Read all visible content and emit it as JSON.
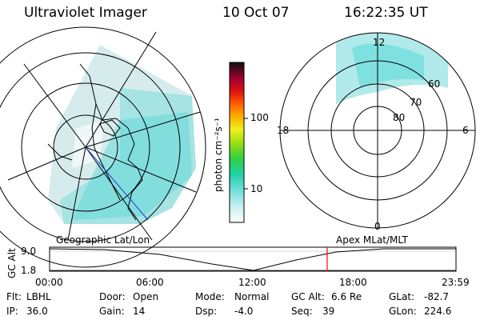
{
  "header": {
    "title": "Ultraviolet Imager",
    "date": "10 Oct 07",
    "time": "16:22:35 UT"
  },
  "colorbar": {
    "unit_label": "photon cm⁻²s⁻¹",
    "ticks": [
      "100",
      "10"
    ]
  },
  "polar_plot": {
    "mlt_labels": {
      "top": "12",
      "left": "18",
      "right": "6",
      "bottom": "0"
    },
    "lat_labels": [
      "60",
      "70",
      "80"
    ]
  },
  "timeline": {
    "left_title": "Geographic Lat/Lon",
    "right_title": "Apex MLat/MLT",
    "y_axis_label": "GC Alt",
    "y_ticks": [
      "9.0",
      "1.8"
    ],
    "x_ticks": [
      "00:00",
      "06:00",
      "12:00",
      "18:00",
      "23:59"
    ],
    "current_time_fraction": 0.683
  },
  "info": {
    "row1": [
      {
        "key": "Flt:",
        "val": "LBHL"
      },
      {
        "key": "Door:",
        "val": "Open"
      },
      {
        "key": "Mode:",
        "val": "Normal"
      },
      {
        "key": "GC Alt:",
        "val": "6.6 Re"
      },
      {
        "key": "GLat:",
        "val": "-82.7"
      }
    ],
    "row2": [
      {
        "key": "IP:",
        "val": "36.0"
      },
      {
        "key": "Gain:",
        "val": "14"
      },
      {
        "key": "Dsp:",
        "val": "-4.0"
      },
      {
        "key": "Seq:",
        "val": "39"
      },
      {
        "key": "GLon:",
        "val": "224.6"
      }
    ]
  },
  "colors": {
    "aurora": "#5ed8d8",
    "marker": "#ff0000",
    "coast": "#000000",
    "track": "#1f3fd0"
  }
}
